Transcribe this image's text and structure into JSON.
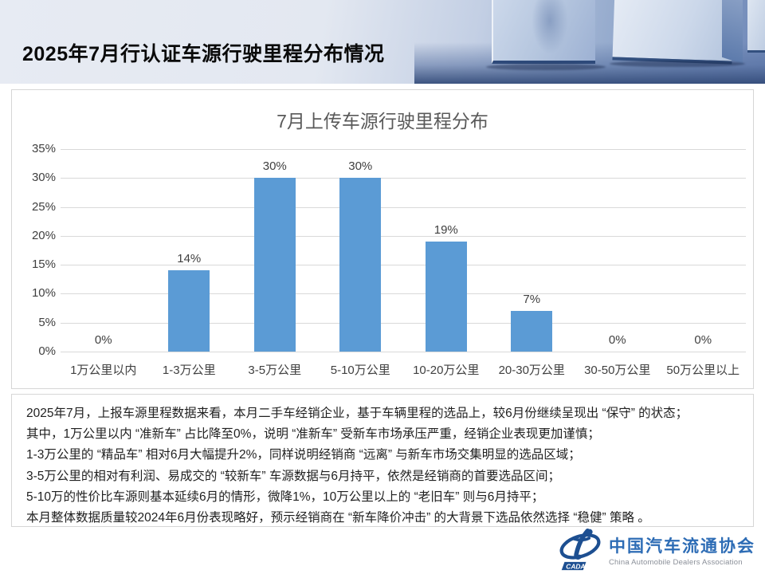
{
  "page": {
    "title": "2025年7月行认证车源行驶里程分布情况"
  },
  "chart_data": {
    "type": "bar",
    "title": "7月上传车源行驶里程分布",
    "categories": [
      "1万公里以内",
      "1-3万公里",
      "3-5万公里",
      "5-10万公里",
      "10-20万公里",
      "20-30万公里",
      "30-50万公里",
      "50万公里以上"
    ],
    "values": [
      0,
      14,
      30,
      30,
      19,
      7,
      0,
      0
    ],
    "value_labels": [
      "0%",
      "14%",
      "30%",
      "30%",
      "19%",
      "7%",
      "0%",
      "0%"
    ],
    "xlabel": "",
    "ylabel": "",
    "ylim": [
      0,
      35
    ],
    "ytick_step": 5,
    "ytick_labels": [
      "0%",
      "5%",
      "10%",
      "15%",
      "20%",
      "25%",
      "30%",
      "35%"
    ],
    "grid": true,
    "legend": "none",
    "bar_color": "#5b9bd5",
    "label_color": "#404040"
  },
  "analysis": {
    "lines": [
      "2025年7月，上报车源里程数据来看，本月二手车经销企业，基于车辆里程的选品上，较6月份继续呈现出 “保守” 的状态；",
      "其中，1万公里以内 “准新车” 占比降至0%，说明 “准新车” 受新车市场承压严重，经销企业表现更加谨慎；",
      "1-3万公里的 “精品车” 相对6月大幅提升2%，同样说明经销商 “远离” 与新车市场交集明显的选品区域；",
      "3-5万公里的相对有利润、易成交的 “较新车” 车源数据与6月持平，依然是经销商的首要选品区间；",
      "5-10万的性价比车源则基本延续6月的情形，微降1%，10万公里以上的 “老旧车” 则与6月持平；",
      "本月整体数据质量较2024年6月份表现略好，预示经销商在 “新车降价冲击” 的大背景下选品依然选择 “稳健” 策略 。"
    ]
  },
  "footer": {
    "org_cn": "中国汽车流通协会",
    "org_en": "China Automobile Dealers Association",
    "logo_text": "CADA",
    "brand_color": "#2d6cb5"
  }
}
